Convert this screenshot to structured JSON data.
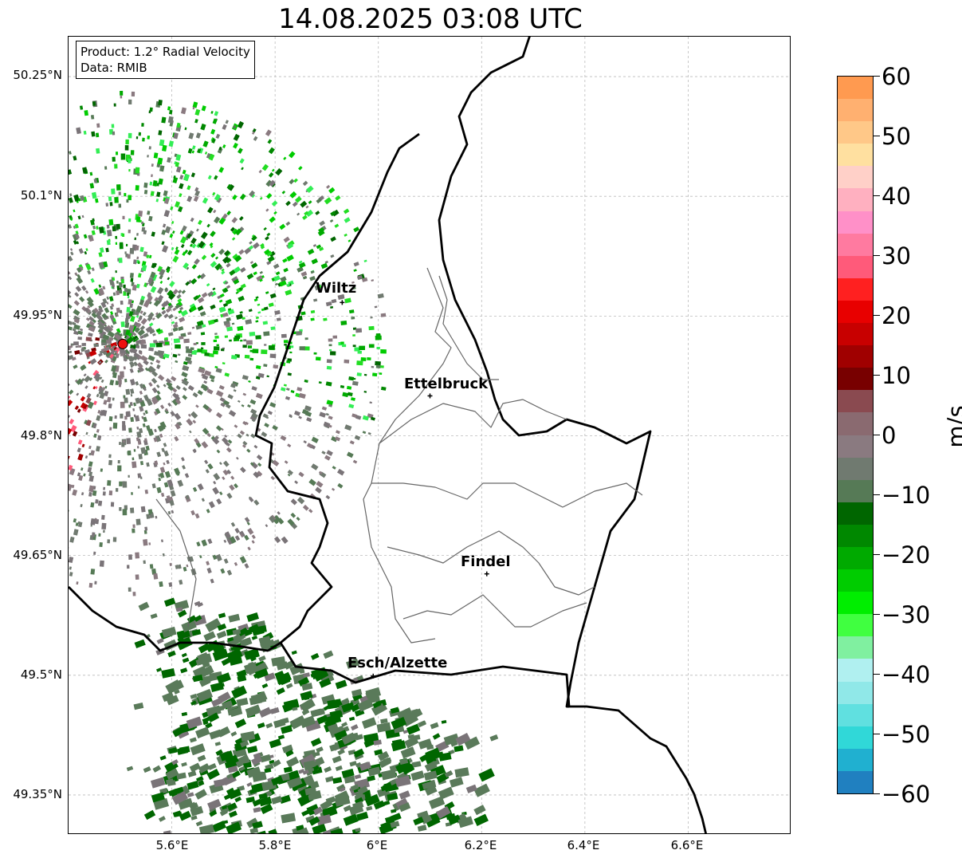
{
  "title": "14.08.2025 03:08 UTC",
  "info": {
    "product": "Product: 1.2° Radial Velocity",
    "data": "Data: RMIB"
  },
  "map": {
    "lat_ticks": [
      "50.25°N",
      "50.1°N",
      "49.95°N",
      "49.8°N",
      "49.65°N",
      "49.5°N",
      "49.35°N"
    ],
    "lon_ticks": [
      "5.6°E",
      "5.8°E",
      "6°E",
      "6.2°E",
      "6.4°E",
      "6.6°E"
    ],
    "lon_range": [
      5.4,
      6.8
    ],
    "lat_range": [
      49.3,
      50.3
    ],
    "cities": [
      {
        "name": "Wiltz",
        "lon": 5.93,
        "lat": 49.967
      },
      {
        "name": "Ettelbruck",
        "lon": 6.1,
        "lat": 49.85
      },
      {
        "name": "Findel",
        "lon": 6.21,
        "lat": 49.627
      },
      {
        "name": "Esch/Alzette",
        "lon": 5.99,
        "lat": 49.499
      }
    ],
    "radar_site": {
      "lon": 5.505,
      "lat": 49.915
    }
  },
  "colorbar": {
    "unit": "m/s",
    "ticks": [
      "60",
      "50",
      "40",
      "30",
      "20",
      "10",
      "0",
      "−10",
      "−20",
      "−30",
      "−40",
      "−50",
      "−60"
    ],
    "range": [
      -60,
      60
    ],
    "colors": [
      "#ff9a50",
      "#ffb070",
      "#ffc888",
      "#ffe0a0",
      "#ffd0c8",
      "#ffb0c0",
      "#ff90c8",
      "#ff7aa0",
      "#ff5a7a",
      "#ff2020",
      "#e80000",
      "#c80000",
      "#a00000",
      "#780000",
      "#8a4a50",
      "#8a6a70",
      "#8a7a80",
      "#707a70",
      "#567a56",
      "#006600",
      "#008800",
      "#00aa00",
      "#00cc00",
      "#00ee00",
      "#40ff40",
      "#80f0a0",
      "#b0f0f0",
      "#90e8e8",
      "#60e0e0",
      "#30d8d8",
      "#20b0d0",
      "#2080c0"
    ]
  }
}
